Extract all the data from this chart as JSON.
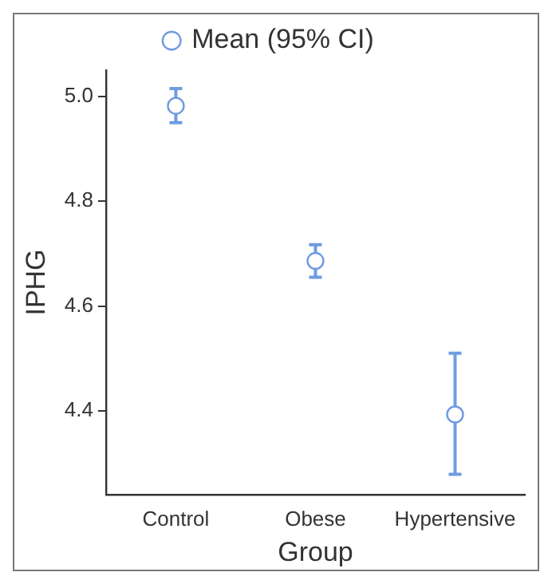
{
  "chart_data": {
    "type": "scatter",
    "xlabel": "Group",
    "ylabel": "IPHG",
    "categories": [
      "Control",
      "Obese",
      "Hypertensive"
    ],
    "series": [
      {
        "name": "Mean (95% CI)",
        "color": "#6f9be0",
        "values": [
          4.982,
          4.686,
          4.393
        ],
        "errors": [
          [
            4.95,
            5.015
          ],
          [
            4.655,
            4.717
          ],
          [
            4.279,
            4.51
          ]
        ]
      }
    ],
    "ylim": [
      4.24,
      5.05
    ],
    "yticks": [
      4.4,
      4.6,
      4.8,
      {
        "value": 5,
        "label": "5.0"
      }
    ],
    "grid": false,
    "legend": "top",
    "marker": "circle"
  }
}
